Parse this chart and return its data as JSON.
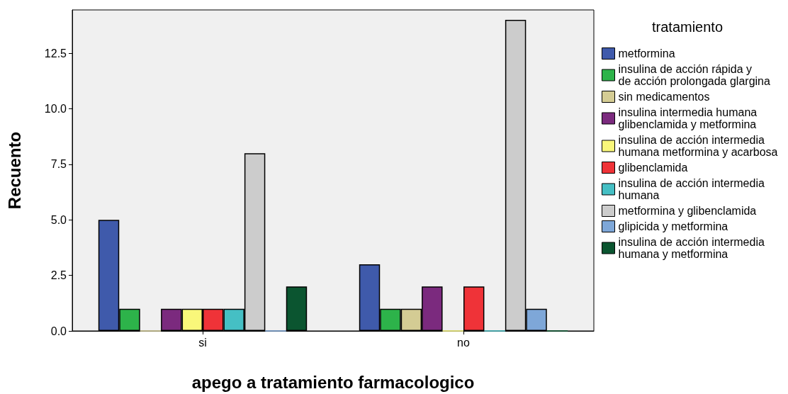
{
  "chart_data": {
    "type": "bar",
    "xlabel": "apego a tratamiento farmacologico",
    "ylabel": "Recuento",
    "legend_title": "tratamiento",
    "categories": [
      "si",
      "no"
    ],
    "series": [
      {
        "name": "metformina",
        "color": "#3f5aab",
        "values": [
          5,
          3
        ]
      },
      {
        "name": "insulina de acción rápida y de acción prolongada glargina",
        "color": "#2db34a",
        "values": [
          1,
          1
        ]
      },
      {
        "name": "sin medicamentos",
        "color": "#d4cc94",
        "values": [
          0,
          1
        ]
      },
      {
        "name": "insulina intermedia humana glibenclamida y metformina",
        "color": "#7b2a7e",
        "values": [
          1,
          2
        ]
      },
      {
        "name": "insulina de acción intermedia humana metformina y acarbosa",
        "color": "#f9f77a",
        "values": [
          1,
          0
        ]
      },
      {
        "name": "glibenclamida",
        "color": "#ef3338",
        "values": [
          1,
          2
        ]
      },
      {
        "name": "insulina de acción intermedia humana",
        "color": "#45bfc4",
        "values": [
          1,
          0
        ]
      },
      {
        "name": "metformina y glibenclamida",
        "color": "#cccccc",
        "values": [
          8,
          14
        ]
      },
      {
        "name": "glipicida y metformina",
        "color": "#7ea7d8",
        "values": [
          0,
          1
        ]
      },
      {
        "name": "insulina de acción intermedia humana y metformina",
        "color": "#0b5530",
        "values": [
          2,
          0
        ]
      }
    ],
    "ylim": [
      0,
      14.45
    ],
    "yticks": [
      {
        "value": 0,
        "label": "0.0"
      },
      {
        "value": 2.5,
        "label": "2.5"
      },
      {
        "value": 5,
        "label": "5.0"
      },
      {
        "value": 7.5,
        "label": "7.5"
      },
      {
        "value": 10,
        "label": "10.0"
      },
      {
        "value": 12.5,
        "label": "12.5"
      }
    ],
    "grid": false,
    "legend": "right"
  }
}
